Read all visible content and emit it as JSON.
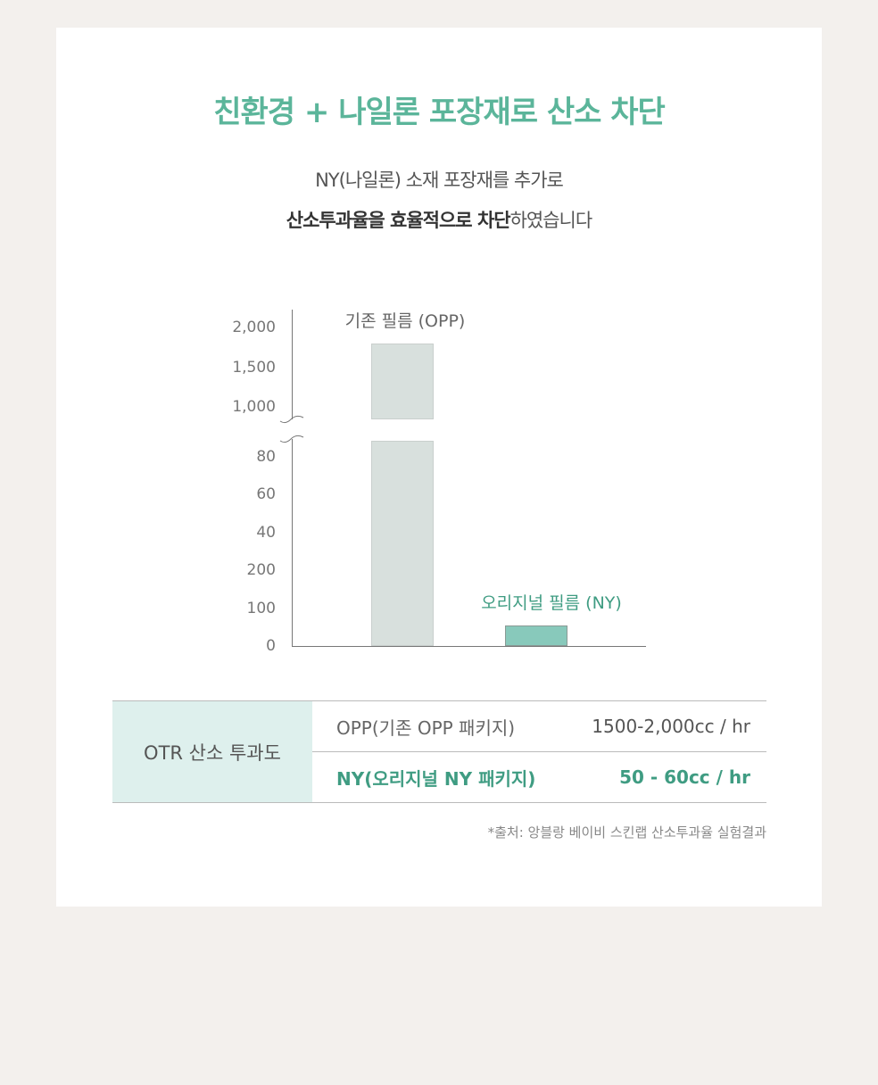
{
  "title": "친환경 + 나일론 포장재로 산소 차단",
  "subtitle_line1": "NY(나일론) 소재 포장재를 추가로",
  "subtitle_line2_bold": "산소투과율을 효율적으로 차단",
  "subtitle_line2_rest": "하였습니다",
  "chart_data": {
    "type": "bar",
    "broken_axis": true,
    "categories": [
      "기존 필름 (OPP)",
      "오리지널 필름 (NY)"
    ],
    "values": [
      1800,
      55
    ],
    "upper_ticks": [
      "2,000",
      "1,500",
      "1,000"
    ],
    "lower_ticks": [
      "80",
      "60",
      "40",
      "200",
      "100",
      "0"
    ],
    "colors": [
      "#d8e0dd",
      "#88c9bb"
    ],
    "label_colors": [
      "#666666",
      "#3f9c82"
    ]
  },
  "table": {
    "header": "OTR 산소 투과도",
    "rows": [
      {
        "label": "OPP(기존 OPP 패키지)",
        "value": "1500-2,000cc / hr"
      },
      {
        "label": "NY(오리지널 NY 패키지)",
        "value": "50 - 60cc / hr"
      }
    ]
  },
  "source": "*출처: 앙블랑 베이비 스킨랩 산소투과율 실험결과"
}
